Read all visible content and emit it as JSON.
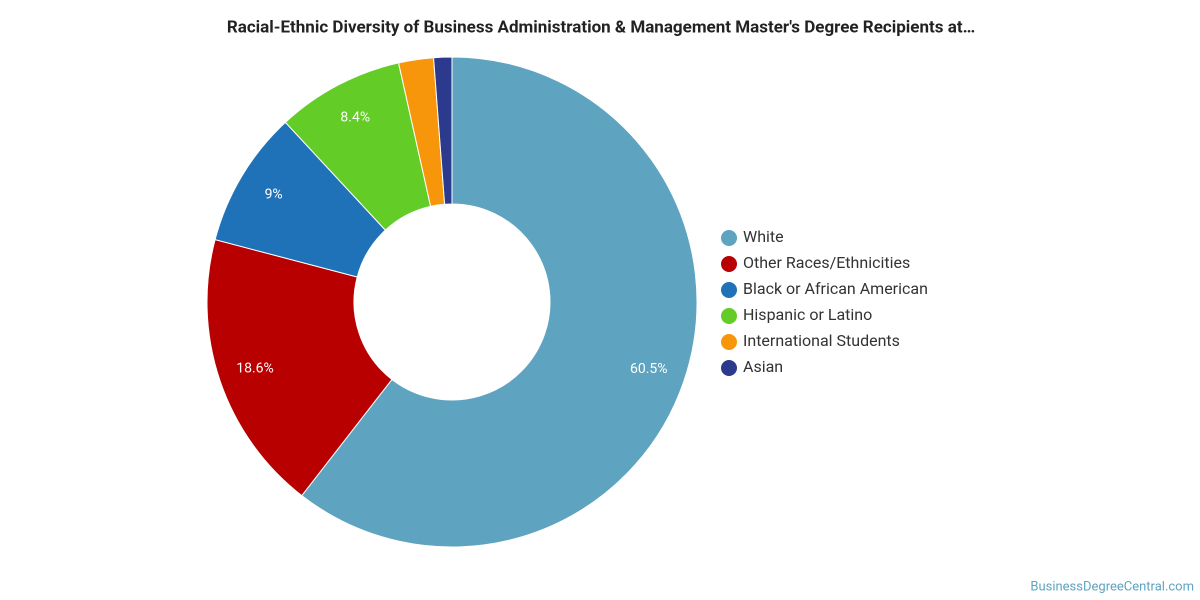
{
  "chart_data": {
    "type": "donut",
    "title": "Racial-Ethnic Diversity of Business Administration & Management Master's Degree Recipients at…",
    "categories": [
      "White",
      "Other Races/Ethnicities",
      "Black or African American",
      "Hispanic or Latino",
      "International Students",
      "Asian"
    ],
    "values": [
      60.5,
      18.6,
      9,
      8.4,
      2.3,
      1.2
    ],
    "value_labels": [
      "60.5%",
      "18.6%",
      "9%",
      "8.4%",
      null,
      null
    ],
    "colors": [
      "#5ea3bf",
      "#b80000",
      "#1f72b8",
      "#63cc26",
      "#f7960b",
      "#2b3a8c"
    ],
    "legend": "right",
    "source": "BusinessDegreeCentral.com"
  }
}
